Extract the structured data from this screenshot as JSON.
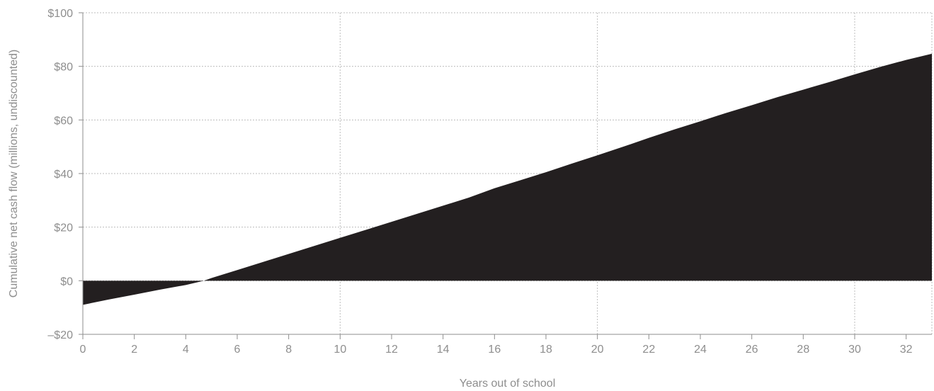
{
  "chart_data": {
    "type": "area",
    "xlabel": "Years out of school",
    "ylabel": "Cumulative net cash flow (millions, undiscounted)",
    "xlim": [
      0,
      33
    ],
    "ylim": [
      -20,
      100
    ],
    "x_ticks": [
      0,
      2,
      4,
      6,
      8,
      10,
      12,
      14,
      16,
      18,
      20,
      22,
      24,
      26,
      28,
      30,
      32
    ],
    "y_ticks": [
      {
        "value": -20,
        "label": "–$20"
      },
      {
        "value": 0,
        "label": "$0"
      },
      {
        "value": 20,
        "label": "$20"
      },
      {
        "value": 40,
        "label": "$40"
      },
      {
        "value": 60,
        "label": "$60"
      },
      {
        "value": 80,
        "label": "$80"
      },
      {
        "value": 100,
        "label": "$100"
      }
    ],
    "grid": true,
    "series": [
      {
        "color": "#231f20",
        "x": [
          0,
          1,
          2,
          3,
          4,
          4.7,
          5,
          6,
          7,
          8,
          9,
          10,
          11,
          12,
          13,
          14,
          15,
          16,
          17,
          18,
          19,
          20,
          21,
          22,
          23,
          24,
          25,
          26,
          27,
          28,
          29,
          30,
          31,
          32,
          33
        ],
        "values": [
          -9,
          -7,
          -5.2,
          -3.3,
          -1.6,
          0,
          1,
          4,
          7,
          10,
          13,
          16,
          19,
          22,
          25,
          28,
          31,
          34.5,
          37.5,
          40.5,
          43.7,
          46.8,
          50,
          53.3,
          56.5,
          59.5,
          62.6,
          65.5,
          68.5,
          71.3,
          74.1,
          77,
          79.8,
          82.4,
          84.7
        ]
      }
    ]
  }
}
